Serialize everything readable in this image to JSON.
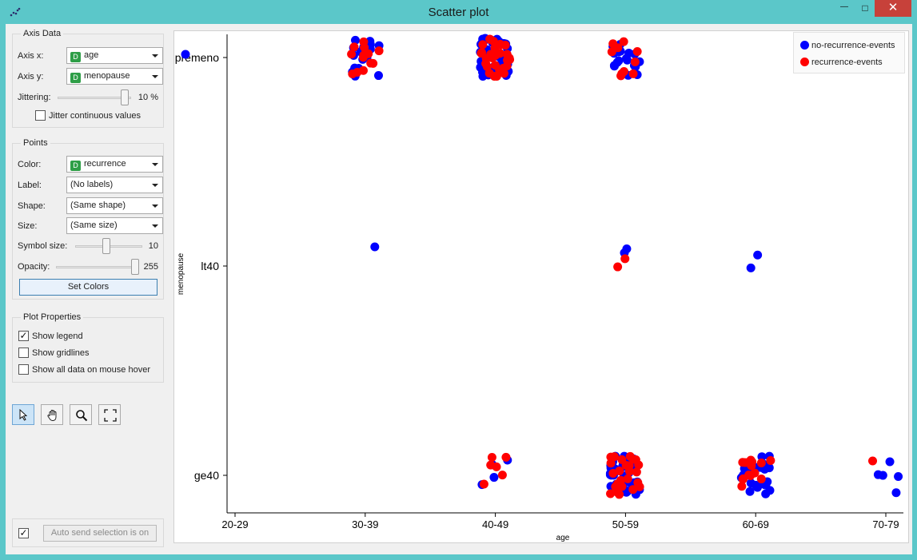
{
  "window": {
    "title": "Scatter plot",
    "minimize": "—",
    "maximize": "□",
    "close": "✕"
  },
  "axis_data": {
    "title": "Axis Data",
    "axis_x": {
      "label": "Axis x:",
      "value": "age",
      "badge": "D"
    },
    "axis_y": {
      "label": "Axis y:",
      "value": "menopause",
      "badge": "D"
    },
    "jittering": {
      "label": "Jittering:",
      "value": "10 %",
      "level": 0.95
    },
    "jitter_continuous": {
      "label": "Jitter continuous values",
      "checked": false
    }
  },
  "points": {
    "title": "Points",
    "color": {
      "label": "Color:",
      "value": "recurrence",
      "badge": "D"
    },
    "label": {
      "label": "Label:",
      "value": "(No labels)"
    },
    "shape": {
      "label": "Shape:",
      "value": "(Same shape)"
    },
    "size": {
      "label": "Size:",
      "value": "(Same size)"
    },
    "symbol_size": {
      "label": "Symbol size:",
      "value": "10",
      "level": 0.45
    },
    "opacity": {
      "label": "Opacity:",
      "value": "255",
      "level": 1.0
    },
    "set_colors": "Set Colors"
  },
  "plot_properties": {
    "title": "Plot Properties",
    "show_legend": {
      "label": "Show legend",
      "checked": true
    },
    "show_gridlines": {
      "label": "Show gridlines",
      "checked": false
    },
    "show_all_hover": {
      "label": "Show all data on mouse hover",
      "checked": false
    }
  },
  "tools": [
    "select-pointer-icon",
    "pan-hand-icon",
    "zoom-magnifier-icon",
    "fit-view-icon"
  ],
  "auto_send": {
    "label": "Auto send selection is on",
    "checked": true
  },
  "colors": {
    "no_recurrence": "#0000ff",
    "recurrence": "#ff0000"
  },
  "chart_data": {
    "type": "scatter",
    "title": "",
    "xlabel": "age",
    "ylabel": "menopause",
    "x_categories": [
      "20-29",
      "30-39",
      "40-49",
      "50-59",
      "60-69",
      "70-79"
    ],
    "y_categories": [
      "ge40",
      "lt40",
      "premeno"
    ],
    "jittering": 0.1,
    "grid": false,
    "legend_placement": "top-right",
    "legend": [
      "no-recurrence-events",
      "recurrence-events"
    ],
    "groups": [
      {
        "x": "20-29",
        "y": "premeno",
        "no_recurrence": 1,
        "recurrence": 0
      },
      {
        "x": "30-39",
        "y": "premeno",
        "no_recurrence": 20,
        "recurrence": 13
      },
      {
        "x": "30-39",
        "y": "lt40",
        "no_recurrence": 1,
        "recurrence": 0
      },
      {
        "x": "40-49",
        "y": "premeno",
        "no_recurrence": 50,
        "recurrence": 30
      },
      {
        "x": "40-49",
        "y": "ge40",
        "no_recurrence": 4,
        "recurrence": 6
      },
      {
        "x": "50-59",
        "y": "premeno",
        "no_recurrence": 20,
        "recurrence": 10
      },
      {
        "x": "50-59",
        "y": "lt40",
        "no_recurrence": 2,
        "recurrence": 2
      },
      {
        "x": "50-59",
        "y": "ge40",
        "no_recurrence": 50,
        "recurrence": 25
      },
      {
        "x": "60-69",
        "y": "lt40",
        "no_recurrence": 2,
        "recurrence": 0
      },
      {
        "x": "60-69",
        "y": "ge40",
        "no_recurrence": 25,
        "recurrence": 15
      },
      {
        "x": "70-79",
        "y": "ge40",
        "no_recurrence": 5,
        "recurrence": 1
      }
    ]
  }
}
